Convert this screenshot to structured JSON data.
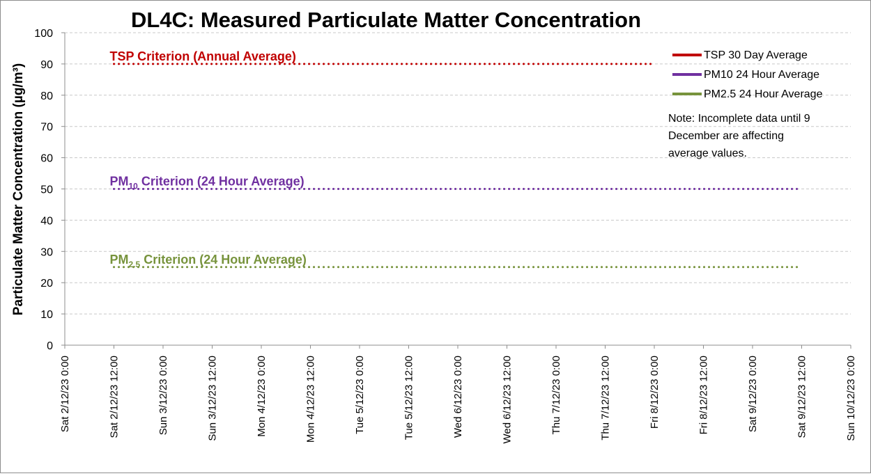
{
  "colors": {
    "tsp": "#c00000",
    "pm10": "#7030a0",
    "pm25": "#77933c",
    "grid": "#c8c8c8",
    "axis": "#8c8c8c"
  },
  "chart_data": {
    "type": "line",
    "title": "DL4C: Measured Particulate Matter Concentration",
    "xlabel": "",
    "ylabel": "Particulate Matter Concentration (µg/m³)",
    "ylim": [
      0,
      100
    ],
    "yticks": [
      0,
      10,
      20,
      30,
      40,
      50,
      60,
      70,
      80,
      90,
      100
    ],
    "xlim": [
      "2023-12-02T00:00",
      "2023-12-10T00:00"
    ],
    "xtick_labels": [
      "Sat 2/12/23 0:00",
      "Sat 2/12/23 12:00",
      "Sun 3/12/23 0:00",
      "Sun 3/12/23 12:00",
      "Mon 4/12/23 0:00",
      "Mon 4/12/23 12:00",
      "Tue 5/12/23 0:00",
      "Tue 5/12/23 12:00",
      "Wed 6/12/23 0:00",
      "Wed 6/12/23 12:00",
      "Thu 7/12/23 0:00",
      "Thu 7/12/23 12:00",
      "Fri 8/12/23 0:00",
      "Fri 8/12/23 12:00",
      "Sat 9/12/23 0:00",
      "Sat 9/12/23 12:00",
      "Sun 10/12/23 0:00"
    ],
    "grid": true,
    "legend_position": "top-right",
    "series": [
      {
        "name": "TSP 30 Day Average",
        "color_key": "tsp",
        "points": []
      },
      {
        "name": "PM10 24 Hour Average",
        "color_key": "pm10",
        "points": []
      },
      {
        "name": "PM2.5 24 Hour Average",
        "color_key": "pm25",
        "points": []
      }
    ],
    "criteria": [
      {
        "key": "tsp",
        "base": "TSP Criterion (Annual Average)",
        "sub": "",
        "rest": "",
        "value": 90,
        "start": "2023-12-02T12:00",
        "end": "2023-12-08T00:00"
      },
      {
        "key": "pm10",
        "base": "PM",
        "sub": "10",
        "rest": " Criterion (24 Hour Average)",
        "value": 50,
        "start": "2023-12-02T12:00",
        "end": "2023-12-09T12:00"
      },
      {
        "key": "pm25",
        "base": "PM",
        "sub": "2.5",
        "rest": " Criterion (24 Hour Average)",
        "value": 25,
        "start": "2023-12-02T12:00",
        "end": "2023-12-09T12:00"
      }
    ],
    "note": [
      "Note: Incomplete data until 9",
      "December are affecting",
      "average values."
    ]
  }
}
